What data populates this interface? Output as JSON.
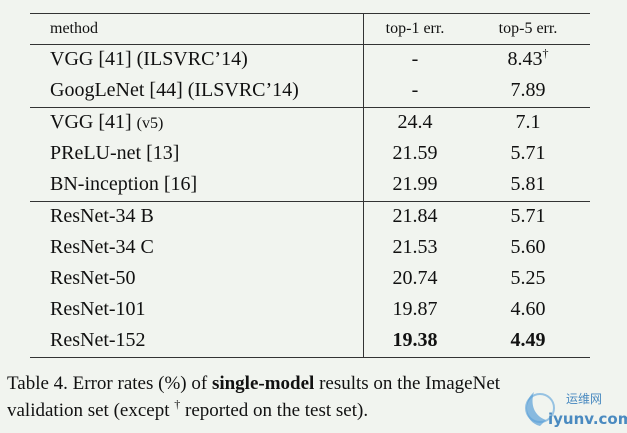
{
  "table": {
    "header": {
      "method": "method",
      "top1": "top-1 err.",
      "top5": "top-5 err."
    },
    "groups": [
      [
        {
          "method": "VGG [41] (ILSVRC’14)",
          "top1": "-",
          "top5": "8.43",
          "top5_sup": "†"
        },
        {
          "method": "GoogLeNet [44] (ILSVRC’14)",
          "top1": "-",
          "top5": "7.89"
        }
      ],
      [
        {
          "method": "VGG [41]",
          "method_suffix": "(v5)",
          "top1": "24.4",
          "top5": "7.1"
        },
        {
          "method": "PReLU-net [13]",
          "top1": "21.59",
          "top5": "5.71"
        },
        {
          "method": "BN-inception [16]",
          "top1": "21.99",
          "top5": "5.81"
        }
      ],
      [
        {
          "method": "ResNet-34 B",
          "top1": "21.84",
          "top5": "5.71"
        },
        {
          "method": "ResNet-34 C",
          "top1": "21.53",
          "top5": "5.60"
        },
        {
          "method": "ResNet-50",
          "top1": "20.74",
          "top5": "5.25"
        },
        {
          "method": "ResNet-101",
          "top1": "19.87",
          "top5": "4.60"
        },
        {
          "method": "ResNet-152",
          "top1": "19.38",
          "top5": "4.49",
          "bold": true
        }
      ]
    ]
  },
  "caption": {
    "part1": "Table 4. Error rates (%) of ",
    "bold": "single-model",
    "part2": " results on the ImageNet",
    "part3": "validation set (except ",
    "sup": "†",
    "part4": " reported on the test set)."
  },
  "watermark": {
    "cn": "运维网",
    "url": "iyunv.com"
  }
}
